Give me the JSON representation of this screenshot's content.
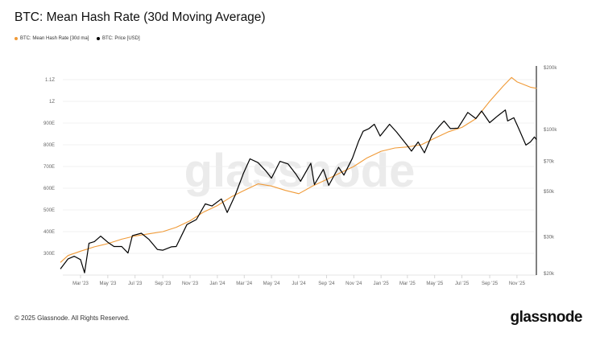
{
  "title": "BTC: Mean Hash Rate (30d Moving Average)",
  "footer": "© 2025 Glassnode. All Rights Reserved.",
  "logo": "glassnode",
  "watermark": "glassnode",
  "colors": {
    "hash_rate": "#f09a37",
    "price": "#000000",
    "grid": "#ececec"
  },
  "chart_data": {
    "type": "line",
    "title": "BTC: Mean Hash Rate (30d Moving Average)",
    "legend_placement": "top-left",
    "grid": true,
    "x_ticks": [
      "Mar '23",
      "May '23",
      "Jul '23",
      "Sep '23",
      "Nov '23",
      "Jan '24",
      "Mar '24",
      "May '24",
      "Jul '24",
      "Sep '24",
      "Nov '24",
      "Jan '25",
      "Mar '25",
      "May '25",
      "Jul '25",
      "Sep '25",
      "Nov '25"
    ],
    "x_tick_dates": [
      "2023-03-01",
      "2023-05-01",
      "2023-07-01",
      "2023-09-01",
      "2023-11-01",
      "2024-01-01",
      "2024-03-01",
      "2024-05-01",
      "2024-07-01",
      "2024-09-01",
      "2024-11-01",
      "2025-01-01",
      "2025-03-01",
      "2025-05-01",
      "2025-07-01",
      "2025-09-01",
      "2025-11-01"
    ],
    "left_axis": {
      "ticks": [
        "300E",
        "400E",
        "500E",
        "600E",
        "700E",
        "800E",
        "900E",
        "1Z",
        "1.1Z"
      ],
      "tick_values": [
        300,
        400,
        500,
        600,
        700,
        800,
        900,
        1000,
        1100
      ],
      "unit": "EH/s",
      "range": [
        245,
        1150
      ]
    },
    "right_axis": {
      "scale": "log",
      "ticks": [
        "$20k",
        "$30k",
        "$50k",
        "$70k",
        "$100k",
        "$200k"
      ],
      "tick_values": [
        20000,
        30000,
        50000,
        70000,
        100000,
        200000
      ],
      "range": [
        20000,
        200000
      ]
    },
    "series": [
      {
        "name": "BTC: Mean Hash Rate [30d ma]",
        "axis": "left",
        "color": "#f09a37",
        "x": [
          "2023-01-15",
          "2023-02-01",
          "2023-03-01",
          "2023-04-01",
          "2023-05-01",
          "2023-06-01",
          "2023-07-01",
          "2023-08-01",
          "2023-09-01",
          "2023-10-01",
          "2023-11-01",
          "2023-12-01",
          "2024-01-01",
          "2024-02-01",
          "2024-03-01",
          "2024-04-01",
          "2024-05-01",
          "2024-06-01",
          "2024-07-01",
          "2024-08-01",
          "2024-09-01",
          "2024-10-01",
          "2024-11-01",
          "2024-12-01",
          "2025-01-01",
          "2025-02-01",
          "2025-03-01",
          "2025-04-01",
          "2025-05-01",
          "2025-06-01",
          "2025-07-01",
          "2025-08-01",
          "2025-09-01",
          "2025-10-01",
          "2025-10-20",
          "2025-11-01",
          "2025-12-01",
          "2025-12-15"
        ],
        "values": [
          258,
          290,
          310,
          330,
          345,
          365,
          380,
          390,
          400,
          420,
          450,
          490,
          520,
          560,
          590,
          620,
          610,
          590,
          575,
          610,
          640,
          670,
          700,
          740,
          770,
          785,
          790,
          800,
          830,
          860,
          880,
          920,
          1000,
          1070,
          1110,
          1090,
          1065,
          1060
        ]
      },
      {
        "name": "BTC: Price [USD]",
        "axis": "right",
        "color": "#000000",
        "x": [
          "2023-01-15",
          "2023-02-01",
          "2023-02-15",
          "2023-03-01",
          "2023-03-10",
          "2023-03-20",
          "2023-04-01",
          "2023-04-15",
          "2023-05-01",
          "2023-05-15",
          "2023-06-01",
          "2023-06-15",
          "2023-06-25",
          "2023-07-15",
          "2023-08-01",
          "2023-08-20",
          "2023-09-01",
          "2023-09-20",
          "2023-10-01",
          "2023-10-25",
          "2023-11-15",
          "2023-12-05",
          "2023-12-20",
          "2024-01-10",
          "2024-01-23",
          "2024-02-10",
          "2024-02-28",
          "2024-03-14",
          "2024-04-01",
          "2024-04-18",
          "2024-05-01",
          "2024-05-20",
          "2024-06-07",
          "2024-06-25",
          "2024-07-05",
          "2024-07-28",
          "2024-08-05",
          "2024-08-25",
          "2024-09-06",
          "2024-09-28",
          "2024-10-10",
          "2024-10-29",
          "2024-11-12",
          "2024-11-22",
          "2024-12-05",
          "2024-12-17",
          "2024-12-30",
          "2025-01-20",
          "2025-02-05",
          "2025-02-28",
          "2025-03-10",
          "2025-03-25",
          "2025-04-08",
          "2025-04-25",
          "2025-05-10",
          "2025-05-22",
          "2025-06-05",
          "2025-06-22",
          "2025-07-14",
          "2025-08-01",
          "2025-08-14",
          "2025-09-01",
          "2025-09-20",
          "2025-10-06",
          "2025-10-11",
          "2025-10-25",
          "2025-11-05",
          "2025-11-21",
          "2025-12-01",
          "2025-12-10",
          "2025-12-15"
        ],
        "values": [
          21000,
          23500,
          24200,
          23300,
          20100,
          28000,
          28500,
          30300,
          28300,
          27000,
          27000,
          25100,
          30500,
          31300,
          29200,
          26100,
          25900,
          26900,
          27000,
          34500,
          36500,
          43500,
          42500,
          46000,
          39500,
          48000,
          61000,
          72000,
          69000,
          63000,
          58000,
          70000,
          68000,
          60500,
          56000,
          68500,
          54000,
          64000,
          53500,
          65500,
          60000,
          72500,
          88000,
          98000,
          101000,
          106000,
          93000,
          106000,
          97000,
          84000,
          78500,
          87000,
          77000,
          94000,
          103000,
          110000,
          101000,
          101500,
          121000,
          113000,
          123000,
          108000,
          117000,
          124500,
          110000,
          114000,
          101000,
          84000,
          87000,
          92000,
          89000
        ]
      }
    ]
  }
}
